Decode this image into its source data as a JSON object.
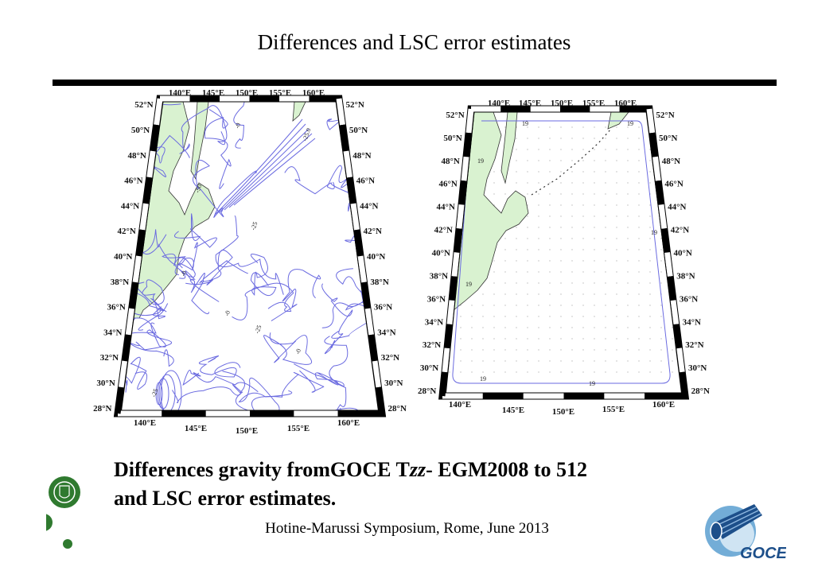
{
  "slide": {
    "title": "Differences and LSC error estimates",
    "caption_line1_a": "Differences gravity fromGOCE T",
    "caption_line1_italic": "zz",
    "caption_line1_b": "- EGM2008 to 512",
    "caption_line2": "and LSC error estimates.",
    "footer": "Hotine-Marussi Symposium, Rome, June 2013"
  },
  "maps": {
    "lat_labels": [
      "52°N",
      "50°N",
      "48°N",
      "46°N",
      "44°N",
      "42°N",
      "40°N",
      "38°N",
      "36°N",
      "34°N",
      "32°N",
      "30°N",
      "28°N"
    ],
    "lon_labels": [
      "140°E",
      "145°E",
      "150°E",
      "155°E",
      "160°E"
    ],
    "left_map": {
      "contour_labels": [
        "-0",
        "-25",
        "-25",
        "-50",
        "-25.0",
        "-0",
        "-0",
        "-0",
        "-25"
      ]
    },
    "right_map": {
      "contour_labels": [
        "19",
        "19",
        "19",
        "19",
        "19",
        "19",
        "19"
      ]
    },
    "colors": {
      "contour": "#6a6ae0",
      "land": "#d9f2d0",
      "frame": "#000000"
    }
  },
  "logos": {
    "goce_text": "GOCE"
  }
}
